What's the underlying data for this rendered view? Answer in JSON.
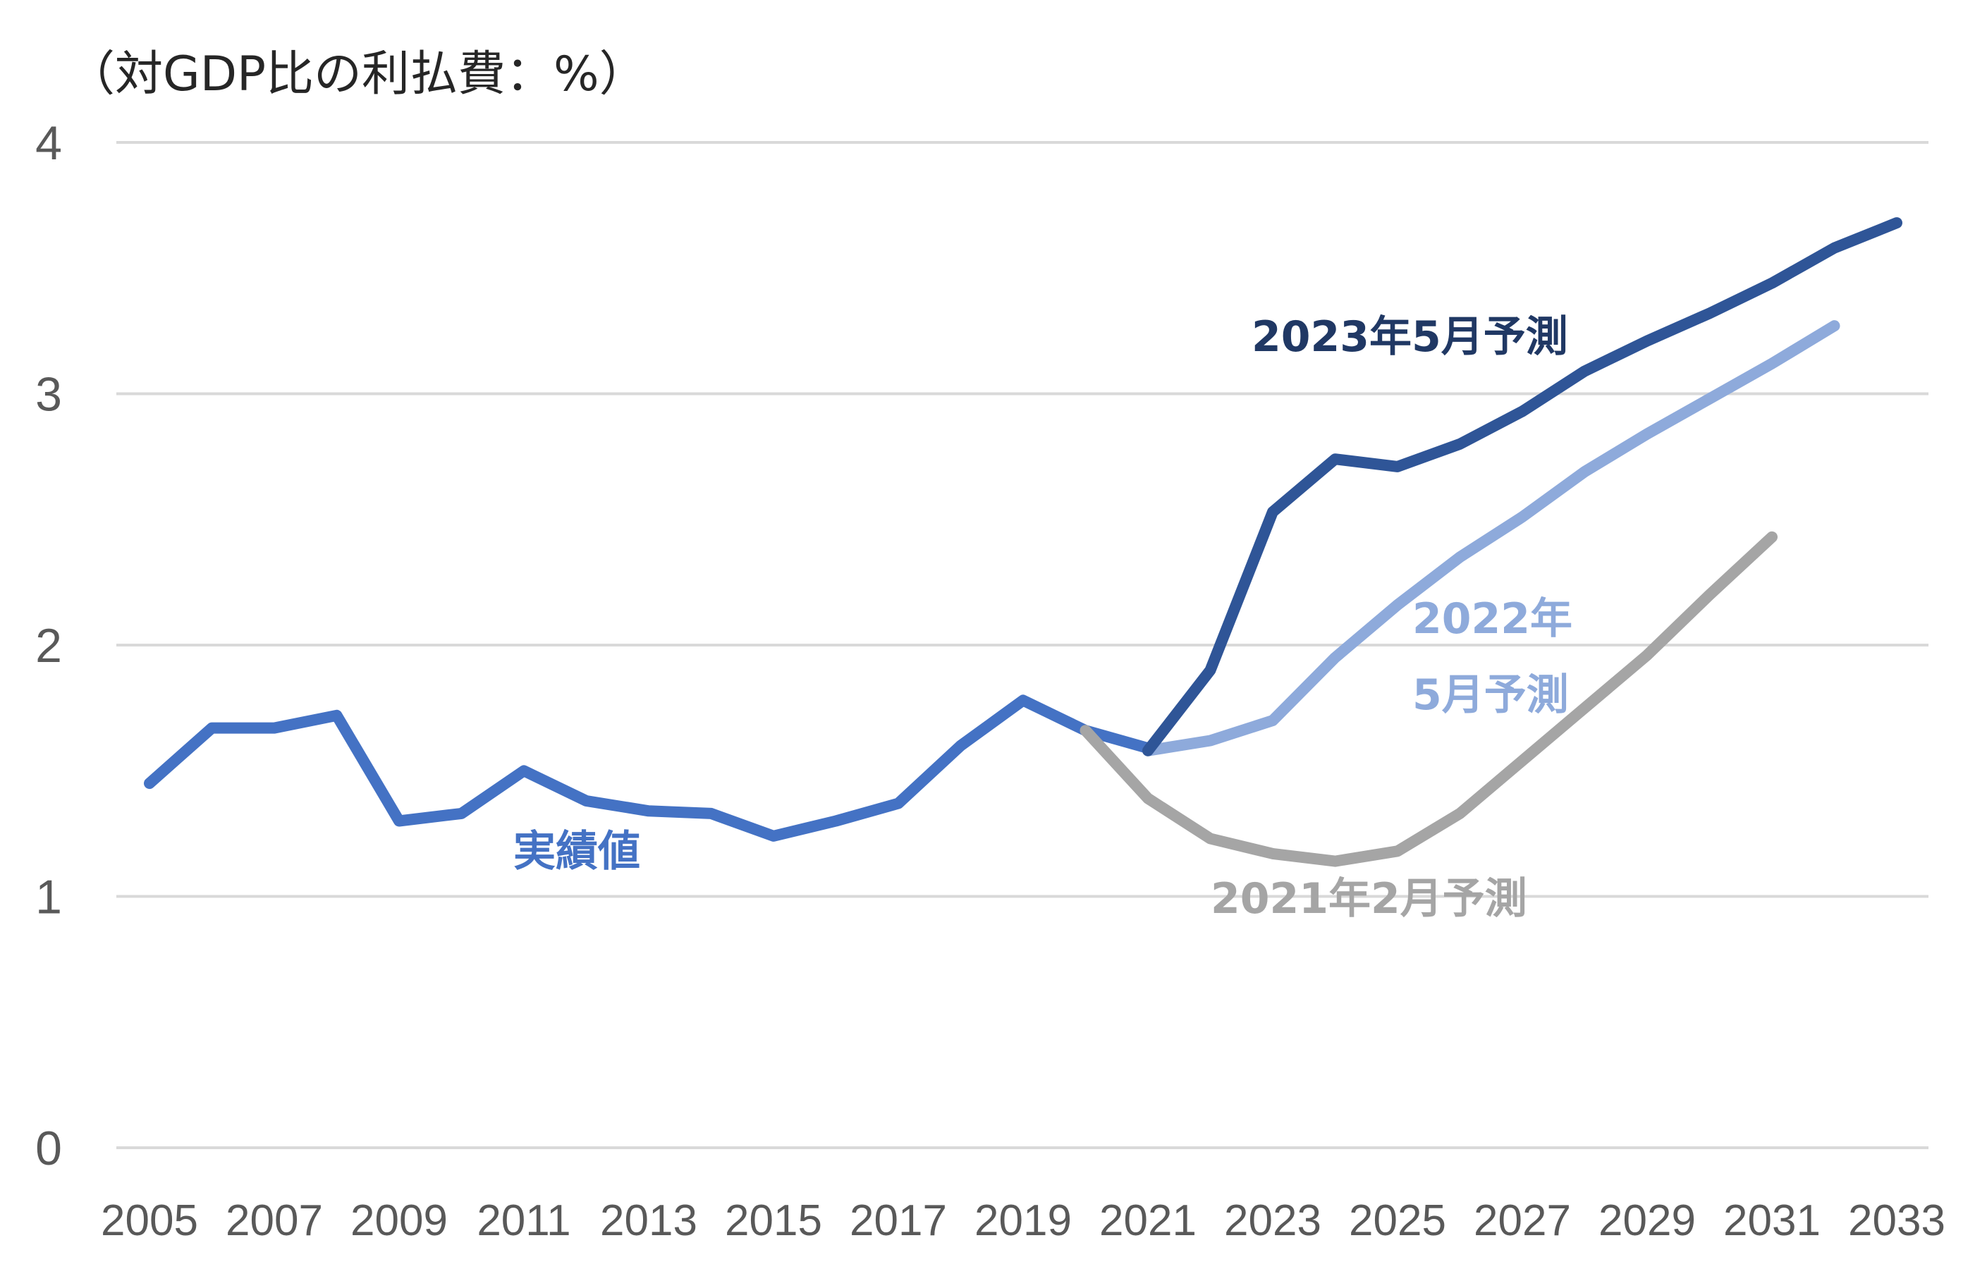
{
  "chart_data": {
    "type": "line",
    "ylabel": "（対GDP比の利払費：%）",
    "xlabel": "",
    "ylim": [
      0,
      4
    ],
    "xlim": [
      2005,
      2033
    ],
    "yticks": [
      "0",
      "1",
      "2",
      "3",
      "4"
    ],
    "xticks": [
      "2005",
      "2007",
      "2009",
      "2011",
      "2013",
      "2015",
      "2017",
      "2019",
      "2021",
      "2023",
      "2025",
      "2027",
      "2029",
      "2031",
      "2033"
    ],
    "grid": true,
    "series": [
      {
        "name": "実績値",
        "color": "#4472c4",
        "x": [
          2005,
          2006,
          2007,
          2008,
          2009,
          2010,
          2011,
          2012,
          2013,
          2014,
          2015,
          2016,
          2017,
          2018,
          2019,
          2020,
          2021
        ],
        "y": [
          1.45,
          1.67,
          1.67,
          1.72,
          1.3,
          1.33,
          1.5,
          1.38,
          1.34,
          1.33,
          1.24,
          1.3,
          1.37,
          1.6,
          1.78,
          1.66,
          1.59
        ]
      },
      {
        "name": "2021年2月予測",
        "color": "#a5a5a5",
        "x": [
          2020,
          2021,
          2022,
          2023,
          2024,
          2025,
          2026,
          2027,
          2028,
          2029,
          2030,
          2031
        ],
        "y": [
          1.66,
          1.39,
          1.23,
          1.17,
          1.14,
          1.18,
          1.33,
          1.54,
          1.75,
          1.96,
          2.2,
          2.43
        ]
      },
      {
        "name": "2022年5月予測",
        "color": "#8eaadb",
        "x": [
          2021,
          2022,
          2023,
          2024,
          2025,
          2026,
          2027,
          2028,
          2029,
          2030,
          2031,
          2032
        ],
        "y": [
          1.58,
          1.62,
          1.7,
          1.95,
          2.16,
          2.35,
          2.51,
          2.69,
          2.84,
          2.98,
          3.12,
          3.27
        ]
      },
      {
        "name": "2023年5月予測",
        "color": "#2f5597",
        "x": [
          2021,
          2022,
          2023,
          2024,
          2025,
          2026,
          2027,
          2028,
          2029,
          2030,
          2031,
          2032,
          2033
        ],
        "y": [
          1.58,
          1.9,
          2.53,
          2.74,
          2.71,
          2.8,
          2.93,
          3.09,
          3.21,
          3.32,
          3.44,
          3.58,
          3.68
        ]
      }
    ],
    "annotations": [
      {
        "lines": [
          "2023年5月予測"
        ],
        "color": "#203864"
      },
      {
        "lines": [
          "2022年",
          "5月予測"
        ],
        "color": "#8eaadb"
      },
      {
        "lines": [
          "2021年2月予測"
        ],
        "color": "#a5a5a5"
      },
      {
        "lines": [
          "実績値"
        ],
        "color": "#4472c4"
      }
    ]
  }
}
